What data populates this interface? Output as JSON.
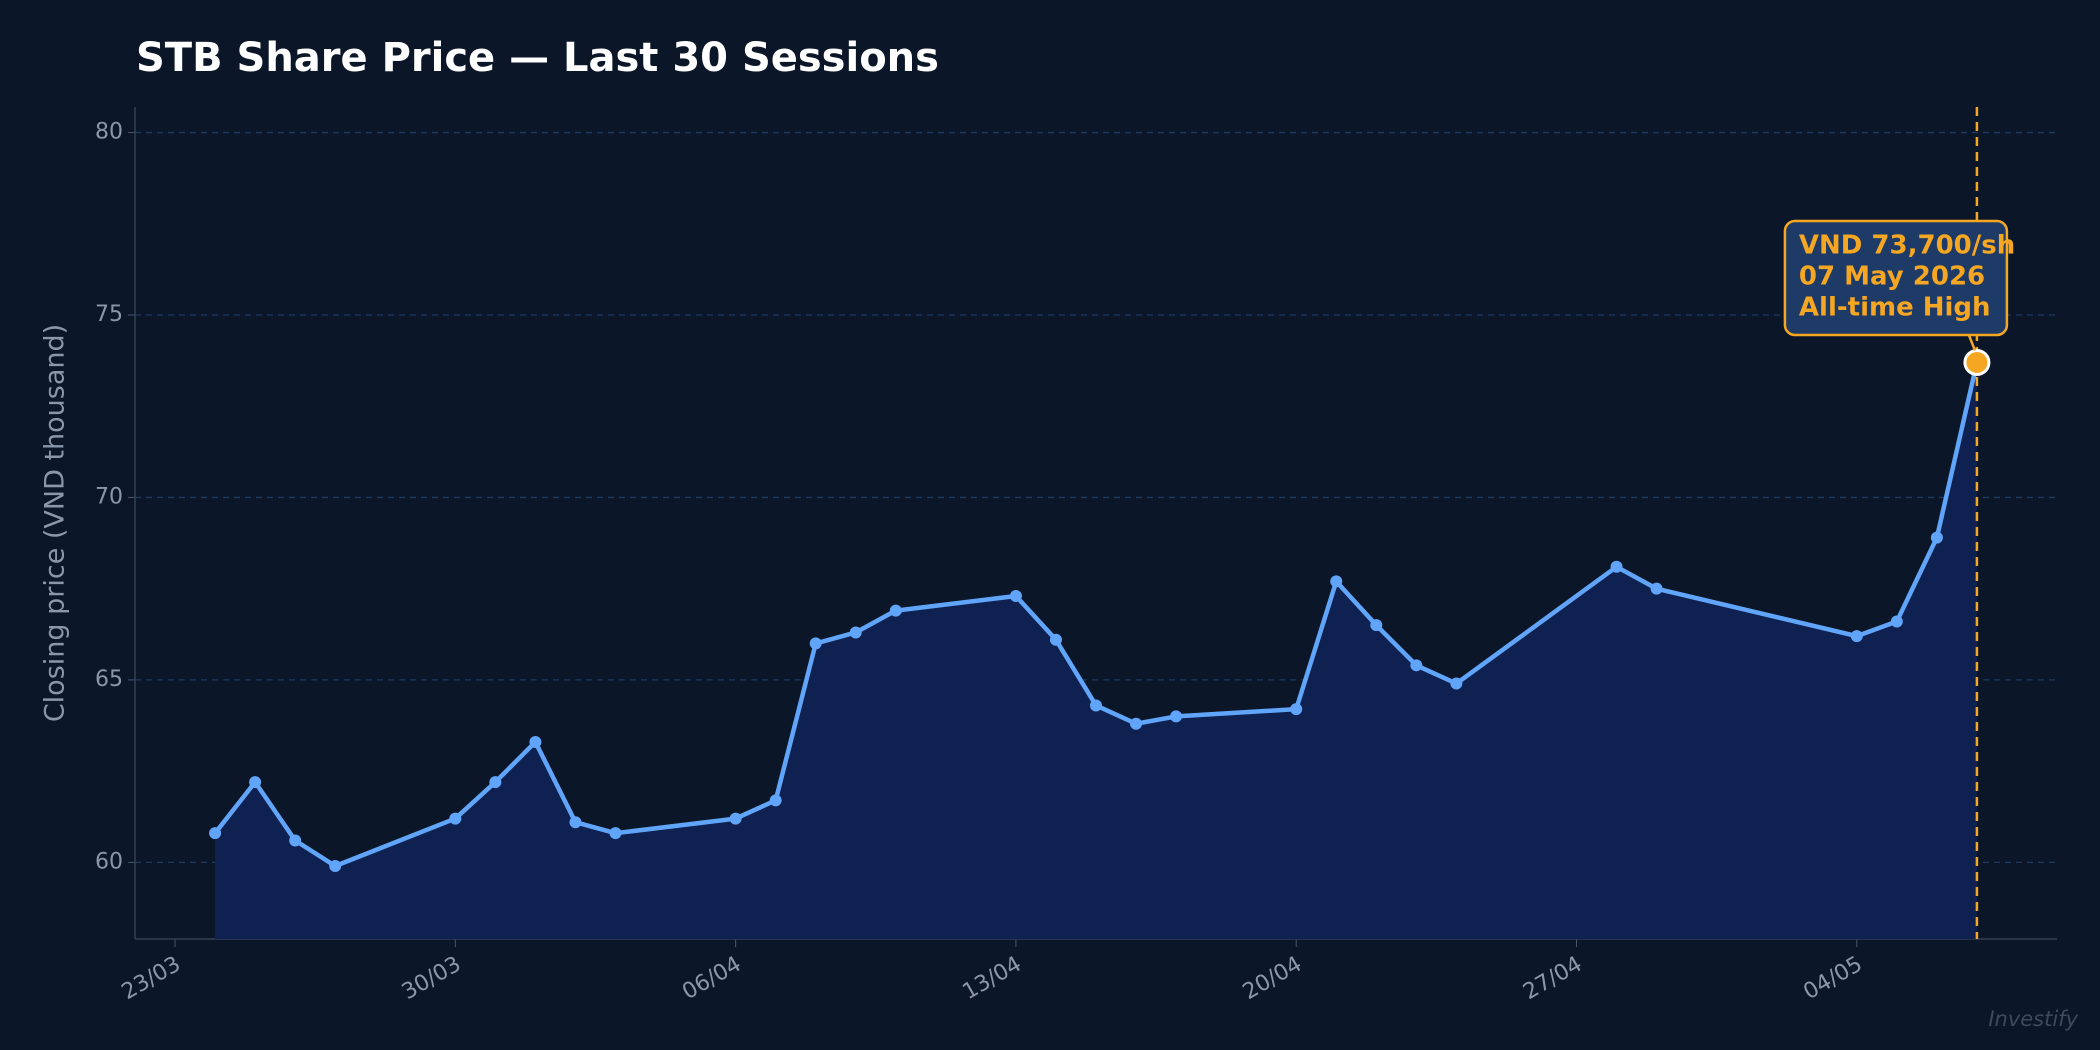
{
  "chart_data": {
    "type": "line",
    "title": "STB Share Price — Last 30 Sessions",
    "y_label": "Closing price (VND thousand)",
    "watermark": "Investify",
    "x": [
      "24/03",
      "25/03",
      "26/03",
      "27/03",
      "30/03",
      "31/03",
      "01/04",
      "02/04",
      "03/04",
      "06/04",
      "07/04",
      "08/04",
      "09/04",
      "10/04",
      "13/04",
      "14/04",
      "15/04",
      "16/04",
      "17/04",
      "20/04",
      "21/04",
      "22/04",
      "23/04",
      "24/04",
      "28/04",
      "29/04",
      "04/05",
      "05/05",
      "06/05",
      "07/05"
    ],
    "series": [
      {
        "name": "STB",
        "color": "#60a5fa",
        "values": [
          60.8,
          62.2,
          60.6,
          59.9,
          61.2,
          62.2,
          63.3,
          61.1,
          60.8,
          61.2,
          61.7,
          66.0,
          66.3,
          66.9,
          67.3,
          66.1,
          64.3,
          63.8,
          64.0,
          64.2,
          67.7,
          66.5,
          65.4,
          64.9,
          68.1,
          67.5,
          66.2,
          66.6,
          68.9,
          73.7
        ]
      }
    ],
    "fill_color": "#0f2150",
    "xlim": [
      "22/03",
      "09/05"
    ],
    "xticks": [
      "23/03",
      "30/03",
      "06/04",
      "13/04",
      "20/04",
      "27/04",
      "04/05"
    ],
    "ylim": [
      57.9,
      80.7
    ],
    "yticks": [
      60,
      65,
      70,
      75,
      80
    ],
    "grid": true,
    "annotation": {
      "x": "07/05",
      "color": "#f5a623",
      "lines": [
        "VND 73,700/sh",
        "07 May 2026",
        "All-time High"
      ]
    }
  }
}
